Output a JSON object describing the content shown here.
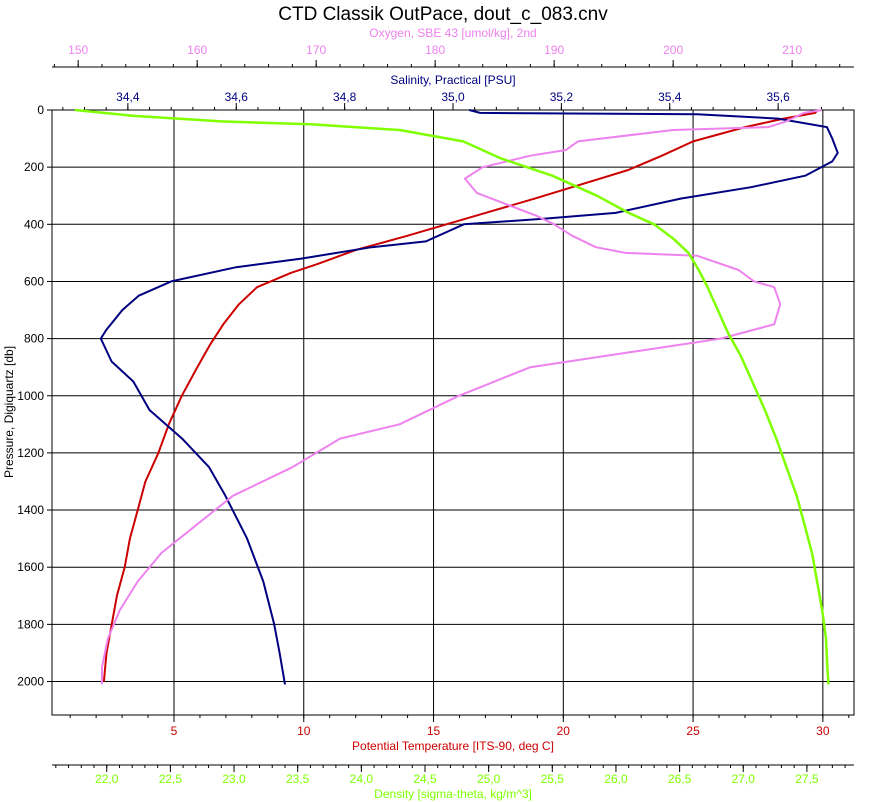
{
  "chart_data": {
    "type": "line",
    "title": "CTD Classik OutPace, dout_c_083.cnv",
    "y_axis": {
      "label": "Pressure, Digiquartz [db]",
      "range": [
        0,
        2100
      ],
      "reversed": true,
      "ticks": [
        "0",
        "200",
        "400",
        "600",
        "800",
        "1000",
        "1200",
        "1400",
        "1600",
        "1800",
        "2000"
      ]
    },
    "x_axes": [
      {
        "id": "oxygen",
        "label": "Oxygen, SBE 43 [umol/kg], 2nd",
        "position": "top",
        "range": [
          147.8,
          215.2
        ],
        "color": "#ee82ee",
        "ticks": [
          "150",
          "160",
          "170",
          "180",
          "190",
          "200",
          "210"
        ]
      },
      {
        "id": "salinity",
        "label": "Salinity, Practical [PSU]",
        "position": "top",
        "range": [
          34.26,
          35.74
        ],
        "color": "#000080",
        "ticks": [
          "34,4",
          "34,6",
          "34,8",
          "35,0",
          "35,2",
          "35,4",
          "35,6"
        ]
      },
      {
        "id": "temperature",
        "label": "Potential Temperature [ITS-90, deg C]",
        "position": "bottom",
        "range": [
          0.3,
          31.2
        ],
        "color": "#cc0000",
        "ticks": [
          "5",
          "10",
          "15",
          "20",
          "25",
          "30"
        ]
      },
      {
        "id": "density",
        "label": "Density [sigma-theta, kg/m^3]",
        "position": "bottom",
        "range": [
          21.57,
          27.87
        ],
        "color": "#7fff00",
        "ticks": [
          "22,0",
          "22,5",
          "23,0",
          "23,5",
          "24,0",
          "24,5",
          "25,0",
          "25,5",
          "26,0",
          "26,5",
          "27,0",
          "27,5"
        ]
      }
    ],
    "grid": true,
    "legend": "none",
    "series": [
      {
        "axis": "temperature",
        "color": "#cc0000",
        "points": [
          [
            29.8,
            0
          ],
          [
            29.7,
            10
          ],
          [
            28.5,
            30
          ],
          [
            27.0,
            60
          ],
          [
            25.0,
            110
          ],
          [
            23.8,
            160
          ],
          [
            22.5,
            210
          ],
          [
            20.7,
            260
          ],
          [
            18.9,
            310
          ],
          [
            17.0,
            360
          ],
          [
            15.5,
            400
          ],
          [
            14.0,
            440
          ],
          [
            12.0,
            490
          ],
          [
            10.5,
            540
          ],
          [
            9.5,
            570
          ],
          [
            8.2,
            620
          ],
          [
            7.5,
            680
          ],
          [
            6.9,
            750
          ],
          [
            6.4,
            820
          ],
          [
            5.9,
            900
          ],
          [
            5.3,
            1000
          ],
          [
            4.8,
            1100
          ],
          [
            4.4,
            1200
          ],
          [
            3.9,
            1300
          ],
          [
            3.6,
            1400
          ],
          [
            3.3,
            1500
          ],
          [
            3.1,
            1600
          ],
          [
            2.8,
            1700
          ],
          [
            2.6,
            1800
          ],
          [
            2.4,
            1900
          ],
          [
            2.3,
            2000
          ]
        ]
      },
      {
        "axis": "salinity",
        "color": "#000080",
        "points": [
          [
            35.03,
            0
          ],
          [
            35.05,
            10
          ],
          [
            35.45,
            15
          ],
          [
            35.6,
            30
          ],
          [
            35.69,
            60
          ],
          [
            35.7,
            100
          ],
          [
            35.71,
            150
          ],
          [
            35.7,
            180
          ],
          [
            35.65,
            230
          ],
          [
            35.55,
            270
          ],
          [
            35.42,
            310
          ],
          [
            35.3,
            360
          ],
          [
            35.17,
            380
          ],
          [
            35.02,
            400
          ],
          [
            34.95,
            460
          ],
          [
            34.85,
            480
          ],
          [
            34.72,
            520
          ],
          [
            34.6,
            550
          ],
          [
            34.48,
            600
          ],
          [
            34.42,
            650
          ],
          [
            34.39,
            700
          ],
          [
            34.36,
            770
          ],
          [
            34.35,
            800
          ],
          [
            34.37,
            880
          ],
          [
            34.41,
            950
          ],
          [
            34.44,
            1050
          ],
          [
            34.5,
            1150
          ],
          [
            34.55,
            1250
          ],
          [
            34.58,
            1350
          ],
          [
            34.62,
            1500
          ],
          [
            34.65,
            1650
          ],
          [
            34.67,
            1800
          ],
          [
            34.68,
            1900
          ],
          [
            34.69,
            2010
          ]
        ]
      },
      {
        "axis": "oxygen",
        "color": "#ee82ee",
        "points": [
          [
            212.5,
            0
          ],
          [
            211.0,
            10
          ],
          [
            209.5,
            40
          ],
          [
            208.0,
            60
          ],
          [
            200.0,
            70
          ],
          [
            192.0,
            110
          ],
          [
            191.0,
            140
          ],
          [
            188.0,
            160
          ],
          [
            184.0,
            200
          ],
          [
            182.5,
            240
          ],
          [
            183.5,
            290
          ],
          [
            186.0,
            330
          ],
          [
            188.5,
            370
          ],
          [
            190.0,
            400
          ],
          [
            191.5,
            440
          ],
          [
            193.5,
            480
          ],
          [
            196.0,
            500
          ],
          [
            202.0,
            510
          ],
          [
            205.5,
            560
          ],
          [
            206.8,
            600
          ],
          [
            208.5,
            620
          ],
          [
            209.0,
            680
          ],
          [
            208.5,
            750
          ],
          [
            204.0,
            800
          ],
          [
            196.0,
            850
          ],
          [
            188.0,
            900
          ],
          [
            182.0,
            1000
          ],
          [
            177.0,
            1100
          ],
          [
            172.0,
            1150
          ],
          [
            168.0,
            1250
          ],
          [
            163.0,
            1350
          ],
          [
            160.0,
            1450
          ],
          [
            157.0,
            1550
          ],
          [
            155.0,
            1650
          ],
          [
            153.5,
            1750
          ],
          [
            152.5,
            1850
          ],
          [
            152.0,
            1950
          ],
          [
            152.0,
            2010
          ]
        ]
      },
      {
        "axis": "density",
        "color": "#7fff00",
        "points": [
          [
            21.75,
            0
          ],
          [
            22.2,
            20
          ],
          [
            22.9,
            40
          ],
          [
            23.6,
            50
          ],
          [
            24.3,
            70
          ],
          [
            24.8,
            110
          ],
          [
            25.1,
            170
          ],
          [
            25.5,
            230
          ],
          [
            25.85,
            300
          ],
          [
            26.1,
            360
          ],
          [
            26.3,
            400
          ],
          [
            26.45,
            450
          ],
          [
            26.57,
            500
          ],
          [
            26.65,
            560
          ],
          [
            26.72,
            620
          ],
          [
            26.8,
            700
          ],
          [
            26.88,
            780
          ],
          [
            26.98,
            860
          ],
          [
            27.07,
            950
          ],
          [
            27.17,
            1050
          ],
          [
            27.26,
            1150
          ],
          [
            27.34,
            1250
          ],
          [
            27.42,
            1350
          ],
          [
            27.48,
            1450
          ],
          [
            27.54,
            1550
          ],
          [
            27.58,
            1650
          ],
          [
            27.62,
            1750
          ],
          [
            27.65,
            1850
          ],
          [
            27.66,
            1950
          ],
          [
            27.67,
            2010
          ]
        ]
      }
    ]
  }
}
